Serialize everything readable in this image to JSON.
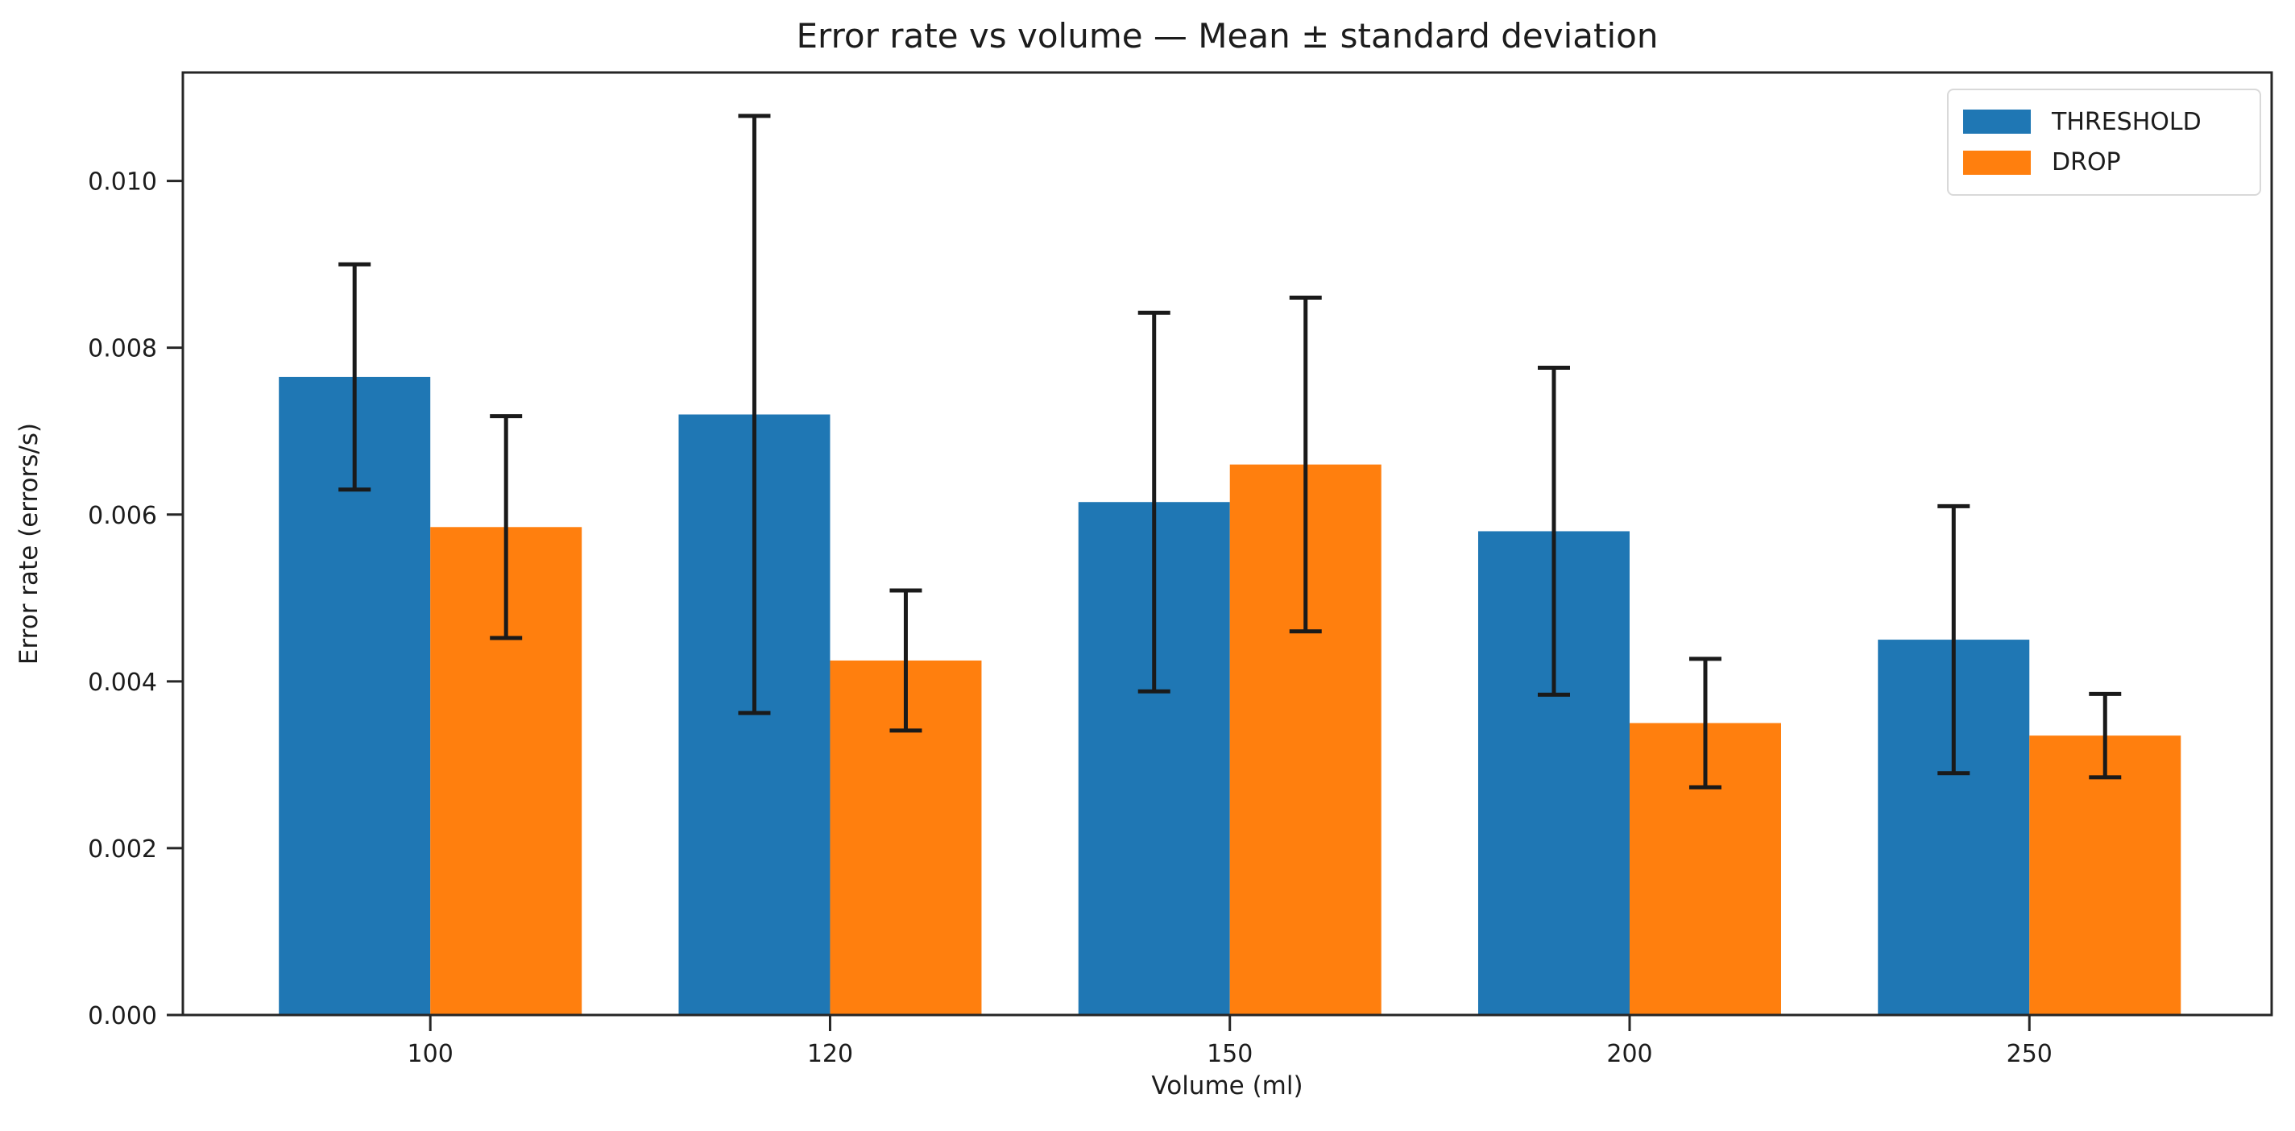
{
  "chart_data": {
    "type": "bar",
    "title": "Error rate vs volume — Mean ± standard deviation",
    "xlabel": "Volume (ml)",
    "ylabel": "Error rate (errors/s)",
    "categories": [
      "100",
      "120",
      "150",
      "200",
      "250"
    ],
    "series": [
      {
        "name": "THRESHOLD",
        "color": "#1f77b4",
        "values": [
          0.00765,
          0.0072,
          0.00615,
          0.0058,
          0.0045
        ],
        "errors": [
          0.00135,
          0.00358,
          0.00227,
          0.00196,
          0.0016
        ]
      },
      {
        "name": "DROP",
        "color": "#ff7f0e",
        "values": [
          0.00585,
          0.00425,
          0.0066,
          0.0035,
          0.00335
        ],
        "errors": [
          0.00133,
          0.00084,
          0.002,
          0.00077,
          0.0005
        ]
      }
    ],
    "ylim": [
      0,
      0.0113
    ],
    "yticks": [
      0,
      0.002,
      0.004,
      0.006,
      0.008,
      0.01
    ],
    "ytick_labels": [
      "0.000",
      "0.002",
      "0.004",
      "0.006",
      "0.008",
      "0.010"
    ],
    "error_bar_color": "#1a1a1a",
    "axis_color": "#262626",
    "text_color": "#1c1c1c",
    "background": "#ffffff",
    "grid": false,
    "legend": {
      "position": "upper right",
      "entries": [
        "THRESHOLD",
        "DROP"
      ]
    }
  }
}
